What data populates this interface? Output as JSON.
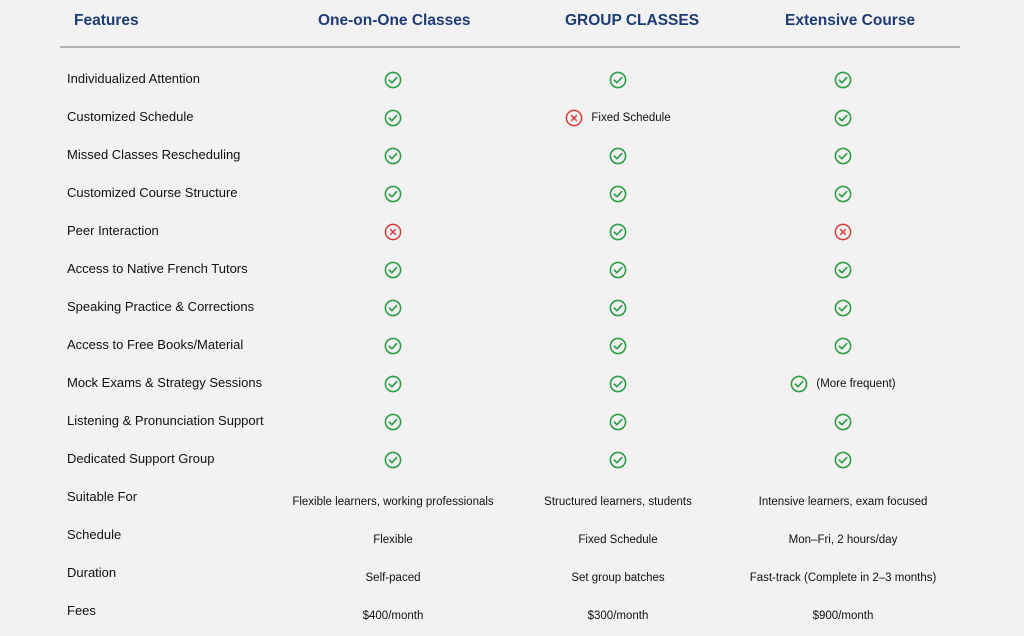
{
  "header": {
    "features": "Features",
    "one_on_one": "One-on-One Classes",
    "group": "GROUP CLASSES",
    "extensive": "Extensive Course"
  },
  "colors": {
    "check": "#2e9e47",
    "cross": "#d43c3c",
    "header": "#1d3b74"
  },
  "rows": [
    {
      "feature": "Individualized Attention",
      "cells": [
        {
          "icon": "check-icon",
          "text": ""
        },
        {
          "icon": "check-icon",
          "text": ""
        },
        {
          "icon": "check-icon",
          "text": ""
        }
      ]
    },
    {
      "feature": "Customized Schedule",
      "cells": [
        {
          "icon": "check-icon",
          "text": ""
        },
        {
          "icon": "cross-icon",
          "text": "Fixed Schedule"
        },
        {
          "icon": "check-icon",
          "text": ""
        }
      ]
    },
    {
      "feature": "Missed Classes Rescheduling",
      "cells": [
        {
          "icon": "check-icon",
          "text": ""
        },
        {
          "icon": "check-icon",
          "text": ""
        },
        {
          "icon": "check-icon",
          "text": ""
        }
      ]
    },
    {
      "feature": "Customized Course Structure",
      "cells": [
        {
          "icon": "check-icon",
          "text": ""
        },
        {
          "icon": "check-icon",
          "text": ""
        },
        {
          "icon": "check-icon",
          "text": ""
        }
      ]
    },
    {
      "feature": "Peer Interaction",
      "cells": [
        {
          "icon": "cross-icon",
          "text": ""
        },
        {
          "icon": "check-icon",
          "text": ""
        },
        {
          "icon": "cross-icon",
          "text": ""
        }
      ]
    },
    {
      "feature": "Access to Native French Tutors",
      "cells": [
        {
          "icon": "check-icon",
          "text": ""
        },
        {
          "icon": "check-icon",
          "text": ""
        },
        {
          "icon": "check-icon",
          "text": ""
        }
      ]
    },
    {
      "feature": "Speaking Practice & Corrections",
      "cells": [
        {
          "icon": "check-icon",
          "text": ""
        },
        {
          "icon": "check-icon",
          "text": ""
        },
        {
          "icon": "check-icon",
          "text": ""
        }
      ]
    },
    {
      "feature": "Access to Free Books/Material",
      "cells": [
        {
          "icon": "check-icon",
          "text": ""
        },
        {
          "icon": "check-icon",
          "text": ""
        },
        {
          "icon": "check-icon",
          "text": ""
        }
      ]
    },
    {
      "feature": "Mock Exams & Strategy Sessions",
      "cells": [
        {
          "icon": "check-icon",
          "text": ""
        },
        {
          "icon": "check-icon",
          "text": ""
        },
        {
          "icon": "check-icon",
          "text": "(More frequent)"
        }
      ]
    },
    {
      "feature": "Listening & Pronunciation Support",
      "cells": [
        {
          "icon": "check-icon",
          "text": ""
        },
        {
          "icon": "check-icon",
          "text": ""
        },
        {
          "icon": "check-icon",
          "text": ""
        }
      ]
    },
    {
      "feature": "Dedicated Support Group",
      "cells": [
        {
          "icon": "check-icon",
          "text": ""
        },
        {
          "icon": "check-icon",
          "text": ""
        },
        {
          "icon": "check-icon",
          "text": ""
        }
      ]
    },
    {
      "feature": "Suitable For",
      "cells": [
        {
          "icon": "",
          "text": "Flexible learners, working professionals"
        },
        {
          "icon": "",
          "text": "Structured learners, students"
        },
        {
          "icon": "",
          "text": "Intensive learners, exam focused"
        }
      ]
    },
    {
      "feature": "Schedule",
      "cells": [
        {
          "icon": "",
          "text": "Flexible"
        },
        {
          "icon": "",
          "text": "Fixed Schedule"
        },
        {
          "icon": "",
          "text": "Mon–Fri, 2 hours/day"
        }
      ]
    },
    {
      "feature": "Duration",
      "cells": [
        {
          "icon": "",
          "text": "Self-paced"
        },
        {
          "icon": "",
          "text": "Set group batches"
        },
        {
          "icon": "",
          "text": "Fast-track (Complete in 2–3 months)"
        }
      ]
    },
    {
      "feature": "Fees",
      "cells": [
        {
          "icon": "",
          "text": "$400/month"
        },
        {
          "icon": "",
          "text": "$300/month"
        },
        {
          "icon": "",
          "text": "$900/month"
        }
      ]
    }
  ]
}
